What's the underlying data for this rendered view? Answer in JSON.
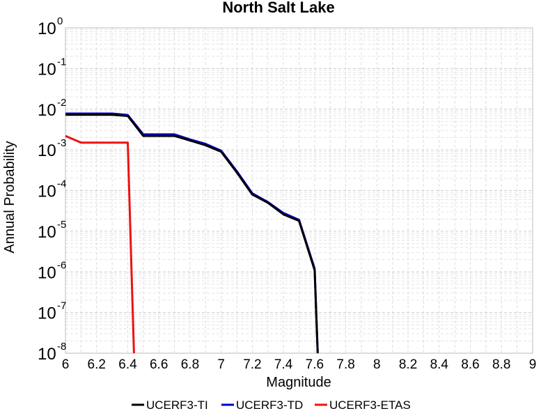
{
  "chart_data": {
    "type": "line",
    "title": "North Salt Lake",
    "xlabel": "Magnitude",
    "ylabel": "Annual Probability",
    "xlim": [
      6,
      9
    ],
    "ylim": [
      1e-08,
      1
    ],
    "yscale": "log",
    "grid": true,
    "legend": "bottom",
    "xticks": [
      "6",
      "6.2",
      "6.4",
      "6.6",
      "6.8",
      "7",
      "7.2",
      "7.4",
      "7.6",
      "7.8",
      "8",
      "8.2",
      "8.4",
      "8.6",
      "8.8",
      "9"
    ],
    "yticks": [
      {
        "base": "10",
        "exp": "0",
        "value": 1
      },
      {
        "base": "10",
        "exp": "-1",
        "value": 0.1
      },
      {
        "base": "10",
        "exp": "-2",
        "value": 0.01
      },
      {
        "base": "10",
        "exp": "-3",
        "value": 0.001
      },
      {
        "base": "10",
        "exp": "-4",
        "value": 0.0001
      },
      {
        "base": "10",
        "exp": "-5",
        "value": 1e-05
      },
      {
        "base": "10",
        "exp": "-6",
        "value": 1e-06
      },
      {
        "base": "10",
        "exp": "-7",
        "value": 1e-07
      },
      {
        "base": "10",
        "exp": "-8",
        "value": 1e-08
      }
    ],
    "series": [
      {
        "name": "UCERF3-TI",
        "color": "#000000",
        "x": [
          6.0,
          6.1,
          6.2,
          6.3,
          6.4,
          6.5,
          6.6,
          6.7,
          6.8,
          6.9,
          7.0,
          7.1,
          7.2,
          7.3,
          7.4,
          7.5,
          7.6,
          7.62
        ],
        "y": [
          0.0073,
          0.0073,
          0.0073,
          0.0073,
          0.0068,
          0.0022,
          0.0022,
          0.0022,
          0.0017,
          0.0013,
          0.0009,
          0.00028,
          8e-05,
          5e-05,
          2.6e-05,
          1.8e-05,
          1.1e-06,
          1e-08
        ]
      },
      {
        "name": "UCERF3-TD",
        "color": "#0000cc",
        "x": [
          6.0,
          6.1,
          6.2,
          6.3,
          6.4,
          6.5,
          6.6,
          6.7,
          6.8,
          6.9,
          7.0,
          7.1,
          7.2,
          7.3,
          7.4,
          7.5,
          7.6,
          7.62
        ],
        "y": [
          0.0078,
          0.0078,
          0.0078,
          0.0078,
          0.0072,
          0.0024,
          0.0024,
          0.0024,
          0.0018,
          0.0014,
          0.00095,
          0.0003,
          8.5e-05,
          5.2e-05,
          2.8e-05,
          1.9e-05,
          1.2e-06,
          1e-08
        ]
      },
      {
        "name": "UCERF3-ETAS",
        "color": "#ee1111",
        "x": [
          6.0,
          6.1,
          6.2,
          6.3,
          6.4,
          6.44
        ],
        "y": [
          0.0022,
          0.0015,
          0.0015,
          0.0015,
          0.0015,
          1e-08
        ]
      }
    ]
  }
}
